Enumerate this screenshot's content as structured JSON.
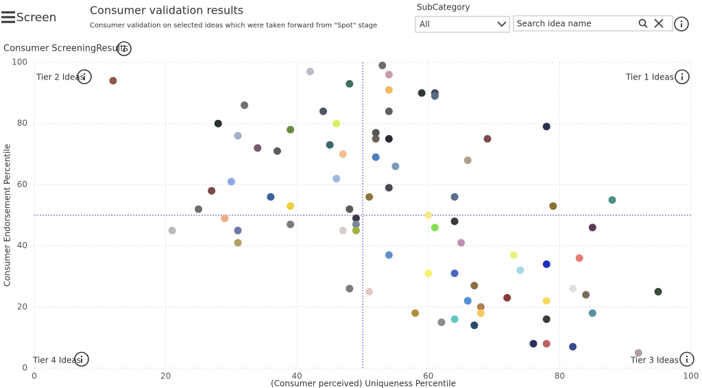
{
  "header": {
    "app_name": "Screen",
    "title": "Consumer validation results",
    "subtitle": "Consumer validation on selected ideas which were taken forward from \"Spot\" stage"
  },
  "filters": {
    "subcategory_label": "SubCategory",
    "subcategory_value": "All",
    "search_placeholder": "Search idea name"
  },
  "section_title": "Consumer ScreeningResults",
  "chart_data": {
    "type": "scatter",
    "x_label": "(Consumer perceived) Uniqueness Percentile",
    "y_label": "Consumer Endorsement Percentile",
    "quadrant_labels": {
      "top_left": "Tier 2 Ideas",
      "top_right": "Tier 1 Ideas",
      "bottom_left": "Tier 4 Ideas",
      "bottom_right": "Tier 3 Ideas"
    },
    "xlim": [
      0,
      100
    ],
    "ylim": [
      0,
      100
    ],
    "xticks": [
      0,
      20,
      40,
      60,
      80,
      100
    ],
    "yticks": [
      0,
      20,
      40,
      60,
      80,
      100
    ],
    "grid": true,
    "reference_lines": {
      "x": 50,
      "y": 50,
      "color": "#8a8ad8"
    },
    "x": [
      12,
      42,
      48,
      53,
      54,
      54,
      59,
      61,
      61,
      32,
      44,
      54,
      28,
      46,
      78,
      39,
      31,
      52,
      52,
      54,
      69,
      34,
      37,
      45,
      47,
      52,
      55,
      66,
      30,
      46,
      54,
      27,
      36,
      51,
      64,
      79,
      88,
      25,
      39,
      48,
      29,
      49,
      60,
      64,
      85,
      39,
      49,
      21,
      31,
      47,
      49,
      61,
      31,
      65,
      54,
      73,
      78,
      83,
      74,
      60,
      64,
      67,
      48,
      51,
      72,
      66,
      78,
      82,
      84,
      95,
      68,
      68,
      58,
      85,
      62,
      64,
      67,
      78,
      76,
      78,
      82,
      92
    ],
    "values": [
      94,
      97,
      93,
      99,
      96,
      91,
      90,
      90,
      89,
      86,
      84,
      84,
      80,
      80,
      79,
      78,
      76,
      77,
      75,
      75,
      75,
      72,
      71,
      73,
      70,
      69,
      66,
      68,
      61,
      62,
      59,
      58,
      56,
      56,
      56,
      53,
      55,
      52,
      53,
      52,
      49,
      49,
      50,
      48,
      46,
      47,
      47,
      45,
      45,
      45,
      45,
      46,
      41,
      41,
      37,
      37,
      34,
      36,
      32,
      31,
      31,
      27,
      26,
      25,
      23,
      22,
      22,
      26,
      24,
      25,
      20,
      18,
      18,
      18,
      15,
      16,
      14,
      16,
      8,
      8,
      7,
      5
    ],
    "colors": [
      "#8b5a4a",
      "#b8bcc8",
      "#3d6e5e",
      "#6e6e6e",
      "#c99aa8",
      "#f0b860",
      "#2f3a35",
      "#3f4a5a",
      "#5a6a85",
      "#707070",
      "#4f5560",
      "#60605e",
      "#2a332e",
      "#d8f060",
      "#2a3050",
      "#6a8a40",
      "#a0b0c8",
      "#585450",
      "#6a625a",
      "#2a2a2e",
      "#7a4a50",
      "#7a5a70",
      "#5e5e5a",
      "#3a6a70",
      "#f0c090",
      "#4a80c0",
      "#7a9ab8",
      "#b0a090",
      "#90a8e8",
      "#a0b8e0",
      "#4a4a55",
      "#7a4a4a",
      "#3a60a0",
      "#8a7a40",
      "#5a7090",
      "#8a7030",
      "#4a9088",
      "#6a706a",
      "#f0d040",
      "#5a5a5a",
      "#f0a888",
      "#3a3a44",
      "#f8e890",
      "#3a3a3a",
      "#5a3a50",
      "#7a7a80",
      "#7a86a0",
      "#bcbcbc",
      "#6a78a8",
      "#d8d0c8",
      "#a0b040",
      "#80e050",
      "#b0a060",
      "#c090b0",
      "#6090c8",
      "#e8f080",
      "#2030c0",
      "#e87a70",
      "#a8d8e8",
      "#f8f070",
      "#4a68c0",
      "#8a7040",
      "#7a7a78",
      "#e8c8c8",
      "#8a3a3a",
      "#5090d0",
      "#f8d860",
      "#e0e0e0",
      "#7a6a5a",
      "#3a4a3a",
      "#b08050",
      "#f8c860",
      "#b09040",
      "#5a90a0",
      "#8a8a8a",
      "#60c8c0",
      "#2a4a6a",
      "#3a3a3a",
      "#2a3060",
      "#c06060",
      "#3a4a90",
      "#b0a0a0"
    ]
  }
}
